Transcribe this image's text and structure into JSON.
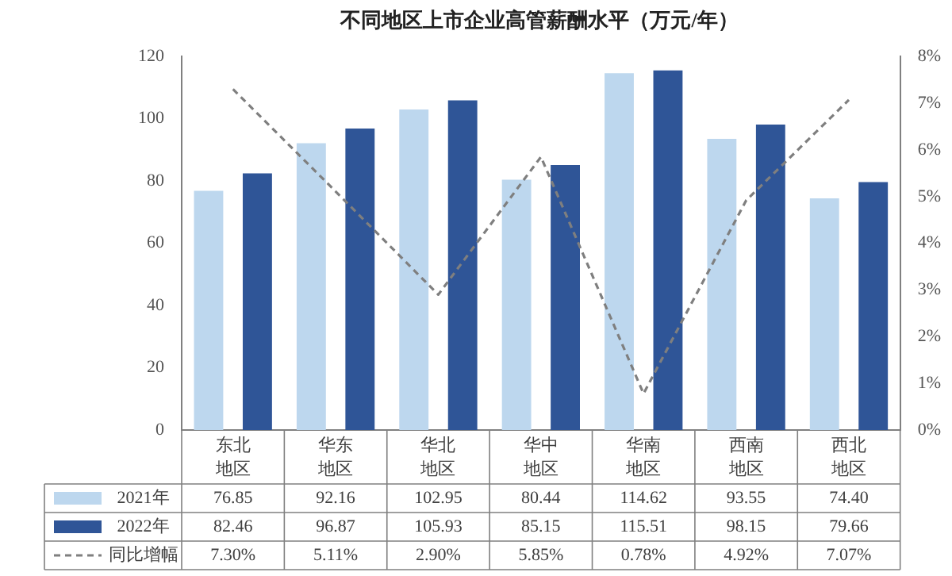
{
  "chart_data": {
    "type": "bar",
    "title": "不同地区上市企业高管薪酬水平（万元/年）",
    "categories": [
      "东北地区",
      "华东地区",
      "华北地区",
      "华中地区",
      "华南地区",
      "西南地区",
      "西北地区"
    ],
    "series": [
      {
        "name": "2021年",
        "color": "#bdd7ee",
        "values": [
          76.85,
          92.16,
          102.95,
          80.44,
          114.62,
          93.55,
          74.4
        ],
        "value_labels": [
          "76.85",
          "92.16",
          "102.95",
          "80.44",
          "114.62",
          "93.55",
          "74.40"
        ]
      },
      {
        "name": "2022年",
        "color": "#2f5597",
        "values": [
          82.46,
          96.87,
          105.93,
          85.15,
          115.51,
          98.15,
          79.66
        ],
        "value_labels": [
          "82.46",
          "96.87",
          "105.93",
          "85.15",
          "115.51",
          "98.15",
          "79.66"
        ]
      },
      {
        "name": "同比增幅",
        "type": "line",
        "axis": "y2",
        "color": "#7f7f7f",
        "line_style": "dashed",
        "marker": "none",
        "values": [
          7.3,
          5.11,
          2.9,
          5.85,
          0.78,
          4.92,
          7.07
        ],
        "value_labels": [
          "7.30%",
          "5.11%",
          "2.90%",
          "5.85%",
          "0.78%",
          "4.92%",
          "7.07%"
        ]
      }
    ],
    "ylim": [
      0,
      120
    ],
    "yticks": [
      0,
      20,
      40,
      60,
      80,
      100,
      120
    ],
    "y2lim": [
      0,
      8
    ],
    "y2ticks": [
      {
        "value": 0,
        "label": "0%"
      },
      {
        "value": 1,
        "label": "1%"
      },
      {
        "value": 2,
        "label": "2%"
      },
      {
        "value": 3,
        "label": "3%"
      },
      {
        "value": 4,
        "label": "4%"
      },
      {
        "value": 5,
        "label": "5%"
      },
      {
        "value": 6,
        "label": "6%"
      },
      {
        "value": 7,
        "label": "7%"
      },
      {
        "value": 8,
        "label": "8%"
      }
    ],
    "grid": false,
    "legend": "bottom"
  }
}
